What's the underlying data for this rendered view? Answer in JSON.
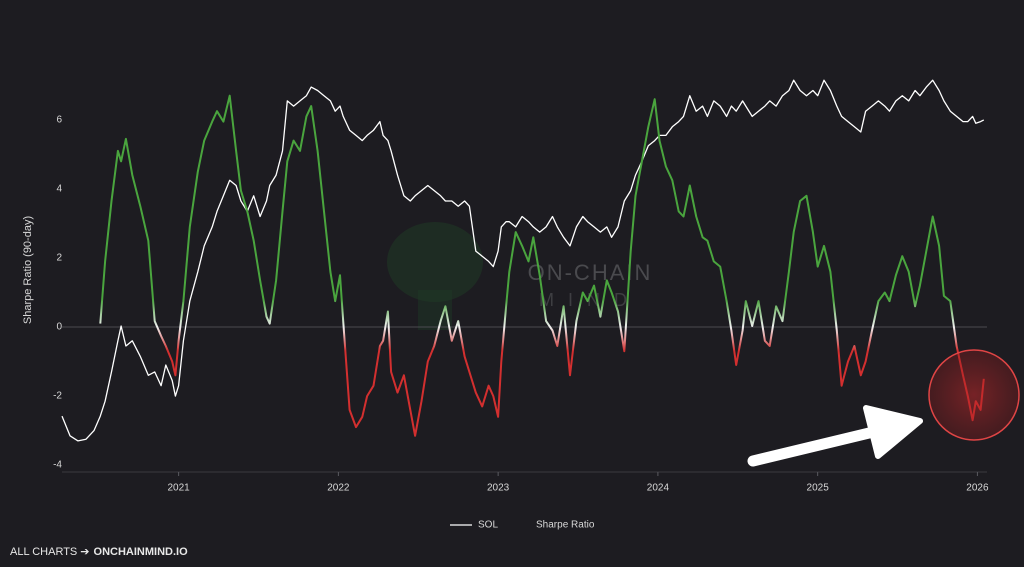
{
  "chart_data": {
    "type": "line",
    "y_label": "Sharpe Ratio (90-day)",
    "watermark": {
      "line1": "ON-CHAIN",
      "line2": "MIND"
    },
    "footer": {
      "prefix": "ALL CHARTS ➔",
      "link": "ONCHAINMIND.IO"
    },
    "xlim": [
      2020.27,
      2026.06
    ],
    "xticks": [
      2021,
      2022,
      2023,
      2024,
      2025,
      2026
    ],
    "ylim": [
      -4.2,
      7.3
    ],
    "yticks": [
      -4,
      -2,
      0,
      2,
      4,
      6
    ],
    "zero_line": true,
    "grid": false,
    "legend": "bottom",
    "x": [
      2020.27,
      2020.32,
      2020.37,
      2020.42,
      2020.47,
      2020.51,
      2020.54,
      2020.58,
      2020.62,
      2020.64,
      2020.67,
      2020.71,
      2020.76,
      2020.81,
      2020.85,
      2020.89,
      2020.92,
      2020.96,
      2020.98,
      2021.0,
      2021.03,
      2021.07,
      2021.12,
      2021.16,
      2021.21,
      2021.24,
      2021.28,
      2021.32,
      2021.36,
      2021.39,
      2021.43,
      2021.47,
      2021.51,
      2021.55,
      2021.57,
      2021.61,
      2021.65,
      2021.68,
      2021.72,
      2021.76,
      2021.8,
      2021.83,
      2021.87,
      2021.91,
      2021.95,
      2021.98,
      2022.01,
      2022.03,
      2022.07,
      2022.11,
      2022.15,
      2022.18,
      2022.22,
      2022.26,
      2022.28,
      2022.31,
      2022.33,
      2022.37,
      2022.41,
      2022.45,
      2022.48,
      2022.52,
      2022.56,
      2022.6,
      2022.64,
      2022.67,
      2022.71,
      2022.75,
      2022.79,
      2022.82,
      2022.86,
      2022.9,
      2022.94,
      2022.97,
      2023.0,
      2023.02,
      2023.05,
      2023.07,
      2023.11,
      2023.15,
      2023.19,
      2023.22,
      2023.26,
      2023.3,
      2023.34,
      2023.37,
      2023.41,
      2023.45,
      2023.49,
      2023.53,
      2023.56,
      2023.6,
      2023.64,
      2023.68,
      2023.71,
      2023.75,
      2023.79,
      2023.83,
      2023.86,
      2023.9,
      2023.94,
      2023.98,
      2024.01,
      2024.05,
      2024.09,
      2024.13,
      2024.16,
      2024.2,
      2024.24,
      2024.28,
      2024.31,
      2024.35,
      2024.39,
      2024.43,
      2024.46,
      2024.49,
      2024.53,
      2024.55,
      2024.59,
      2024.63,
      2024.67,
      2024.7,
      2024.74,
      2024.78,
      2024.82,
      2024.85,
      2024.89,
      2024.93,
      2024.97,
      2025.0,
      2025.04,
      2025.08,
      2025.12,
      2025.15,
      2025.19,
      2025.23,
      2025.27,
      2025.3,
      2025.34,
      2025.38,
      2025.42,
      2025.45,
      2025.49,
      2025.53,
      2025.57,
      2025.61,
      2025.64,
      2025.68,
      2025.72,
      2025.76,
      2025.79,
      2025.83,
      2025.87,
      2025.91,
      2025.94,
      2025.97,
      2025.99,
      2026.02,
      2026.04
    ],
    "series": [
      {
        "name": "SOL",
        "color": "#ffffff",
        "values": [
          -2.58,
          -3.15,
          -3.3,
          -3.25,
          -3.0,
          -2.58,
          -2.15,
          -1.3,
          -0.4,
          0.03,
          -0.55,
          -0.4,
          -0.85,
          -1.4,
          -1.3,
          -1.7,
          -1.1,
          -1.55,
          -2.0,
          -1.7,
          -0.4,
          0.75,
          1.6,
          2.35,
          2.9,
          3.35,
          3.8,
          4.25,
          4.1,
          3.65,
          3.35,
          3.8,
          3.2,
          3.65,
          4.1,
          4.4,
          5.1,
          6.55,
          6.4,
          6.55,
          6.7,
          6.95,
          6.85,
          6.7,
          6.55,
          6.25,
          6.4,
          6.1,
          5.7,
          5.55,
          5.4,
          5.55,
          5.7,
          5.95,
          5.55,
          5.4,
          5.1,
          4.4,
          3.8,
          3.65,
          3.8,
          3.95,
          4.1,
          3.95,
          3.8,
          3.65,
          3.65,
          3.5,
          3.65,
          3.5,
          2.2,
          2.05,
          1.9,
          1.75,
          2.2,
          2.9,
          3.05,
          3.05,
          2.9,
          3.2,
          3.05,
          2.9,
          2.75,
          2.9,
          3.2,
          2.9,
          2.6,
          2.35,
          2.9,
          3.2,
          3.05,
          2.9,
          2.75,
          2.9,
          2.6,
          2.9,
          3.65,
          3.95,
          4.4,
          4.8,
          5.25,
          5.4,
          5.55,
          5.55,
          5.8,
          5.95,
          6.1,
          6.7,
          6.25,
          6.4,
          6.1,
          6.55,
          6.4,
          6.1,
          6.4,
          6.25,
          6.55,
          6.4,
          6.1,
          6.25,
          6.4,
          6.55,
          6.4,
          6.7,
          6.85,
          7.15,
          6.85,
          6.7,
          6.85,
          6.7,
          7.15,
          6.85,
          6.4,
          6.1,
          5.95,
          5.8,
          5.65,
          6.25,
          6.4,
          6.55,
          6.4,
          6.25,
          6.55,
          6.7,
          6.55,
          6.85,
          6.7,
          6.95,
          7.15,
          6.85,
          6.55,
          6.25,
          6.1,
          5.95,
          5.95,
          6.1,
          5.9,
          5.95,
          6.0
        ]
      },
      {
        "name": "Sharpe Ratio",
        "colors": {
          "positive": "#4aa53e",
          "zero": "#f0f0f0",
          "negative": "#d32f2f"
        },
        "values": [
          null,
          null,
          null,
          null,
          null,
          0.1,
          1.9,
          3.65,
          5.1,
          4.8,
          5.45,
          4.4,
          3.5,
          2.5,
          0.17,
          -0.26,
          -0.55,
          -1.0,
          -1.4,
          -0.4,
          0.75,
          2.9,
          4.5,
          5.4,
          5.95,
          6.25,
          5.95,
          6.7,
          5.1,
          3.95,
          3.35,
          2.5,
          1.35,
          0.3,
          0.1,
          1.35,
          3.35,
          4.8,
          5.4,
          5.1,
          6.1,
          6.4,
          5.1,
          3.35,
          1.6,
          0.75,
          1.5,
          0.17,
          -2.4,
          -2.9,
          -2.6,
          -2.0,
          -1.7,
          -0.55,
          -0.4,
          0.45,
          -1.3,
          -1.9,
          -1.4,
          -2.4,
          -3.15,
          -2.15,
          -1.0,
          -0.55,
          0.17,
          0.6,
          -0.4,
          0.17,
          -0.85,
          -1.3,
          -1.9,
          -2.3,
          -1.7,
          -2.0,
          -2.6,
          -1.0,
          0.6,
          1.6,
          2.75,
          2.35,
          1.9,
          2.6,
          1.5,
          0.17,
          -0.1,
          -0.55,
          0.6,
          -1.4,
          0.17,
          1.0,
          0.75,
          1.2,
          0.3,
          1.35,
          1.0,
          0.45,
          -0.7,
          2.2,
          3.8,
          4.8,
          5.8,
          6.6,
          5.4,
          4.65,
          4.25,
          3.35,
          3.2,
          4.1,
          3.2,
          2.6,
          2.5,
          1.9,
          1.75,
          0.75,
          -0.1,
          -1.1,
          -0.1,
          0.75,
          0.03,
          0.75,
          -0.4,
          -0.55,
          0.6,
          0.17,
          1.6,
          2.75,
          3.65,
          3.8,
          2.75,
          1.75,
          2.35,
          1.6,
          -0.1,
          -1.7,
          -1.0,
          -0.55,
          -1.4,
          -1.0,
          -0.1,
          0.75,
          1.0,
          0.75,
          1.5,
          2.05,
          1.6,
          0.6,
          1.2,
          2.2,
          3.2,
          2.35,
          0.9,
          0.75,
          -0.55,
          -1.4,
          -2.0,
          -2.7,
          -2.15,
          -2.4,
          -1.5
        ]
      }
    ]
  }
}
